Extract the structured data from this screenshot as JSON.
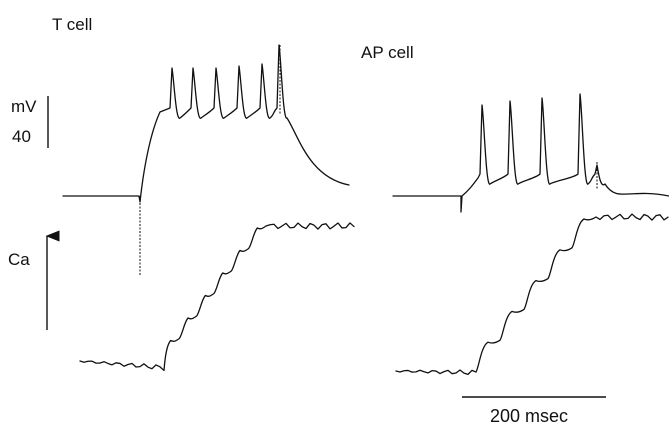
{
  "colors": {
    "ink": "#111111",
    "background": "#ffffff"
  },
  "labels": {
    "panel_left": "T cell",
    "panel_right": "AP cell",
    "voltage_unit": "mV",
    "voltage_scale_value": "40",
    "calcium_label": "Ca",
    "time_scale": "200 msec"
  },
  "chart_data": [
    {
      "type": "line",
      "panel": "T cell",
      "series": [
        {
          "label": "membrane potential",
          "unit": "mV",
          "spike_count": 6
        },
        {
          "label": "Ca",
          "signal": "intracellular calcium, stepwise rise"
        }
      ],
      "voltage_scale_bar_mV": 40,
      "time_scale_bar_msec": 200
    },
    {
      "type": "line",
      "panel": "AP cell",
      "series": [
        {
          "label": "membrane potential",
          "unit": "mV",
          "spike_count": 4
        },
        {
          "label": "Ca",
          "signal": "intracellular calcium, stepwise rise"
        }
      ],
      "voltage_scale_bar_mV": 40,
      "time_scale_bar_msec": 200
    }
  ]
}
